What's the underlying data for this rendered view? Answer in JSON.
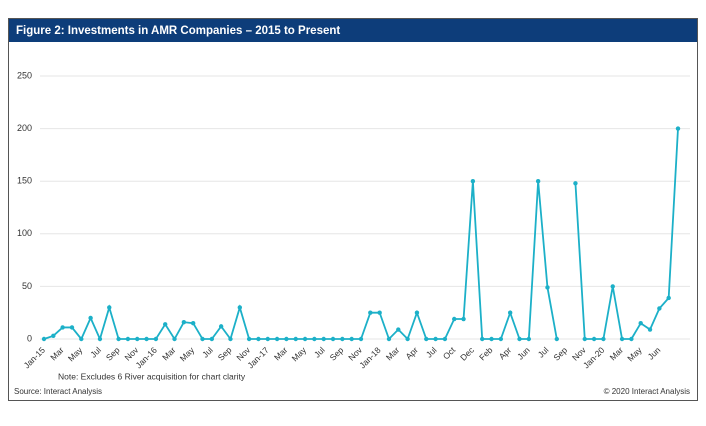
{
  "chart_data": {
    "type": "line",
    "title": "Figure 2: Investments in AMR Companies – 2015 to Present",
    "categories": [
      "Jan-15",
      null,
      "Mar",
      null,
      "May",
      null,
      "Jul",
      null,
      "Sep",
      null,
      "Nov",
      null,
      "Jan-16",
      null,
      "Mar",
      null,
      "May",
      null,
      "Jul",
      null,
      "Sep",
      null,
      "Nov",
      null,
      "Jan-17",
      null,
      "Mar",
      null,
      "May",
      null,
      "Jul",
      null,
      "Sep",
      null,
      "Nov",
      null,
      "Jan-18",
      null,
      "Mar",
      null,
      "Apr",
      null,
      "Jul",
      null,
      "Oct",
      null,
      "Dec",
      null,
      "Feb",
      null,
      "Apr",
      null,
      "Jun",
      null,
      "Jul",
      null,
      "Sep",
      null,
      "Nov",
      null,
      "Jan-20",
      null,
      "Mar",
      null,
      "May",
      null,
      "Jun",
      null,
      null
    ],
    "values": [
      0,
      3,
      11,
      11,
      0,
      20,
      0,
      30,
      0,
      0,
      0,
      0,
      0,
      14,
      0,
      16,
      15,
      0,
      0,
      12,
      0,
      30,
      0,
      0,
      0,
      0,
      0,
      0,
      0,
      0,
      0,
      0,
      0,
      0,
      0,
      25,
      25,
      0,
      9,
      0,
      25,
      0,
      0,
      0,
      19,
      19,
      150,
      0,
      0,
      0,
      25,
      0,
      0,
      150,
      49,
      0,
      null,
      148,
      0,
      0,
      0,
      50,
      0,
      0,
      15,
      9,
      29,
      39,
      200
    ],
    "color": "#1cb0c8",
    "ylim": [
      0,
      250
    ],
    "yticks": [
      0,
      50,
      100,
      150,
      200,
      250
    ],
    "grid": true,
    "note": "Note: Excludes 6 River acquisition for chart clarity",
    "source": "Source: Interact Analysis",
    "copyright": "© 2020 Interact Analysis"
  }
}
